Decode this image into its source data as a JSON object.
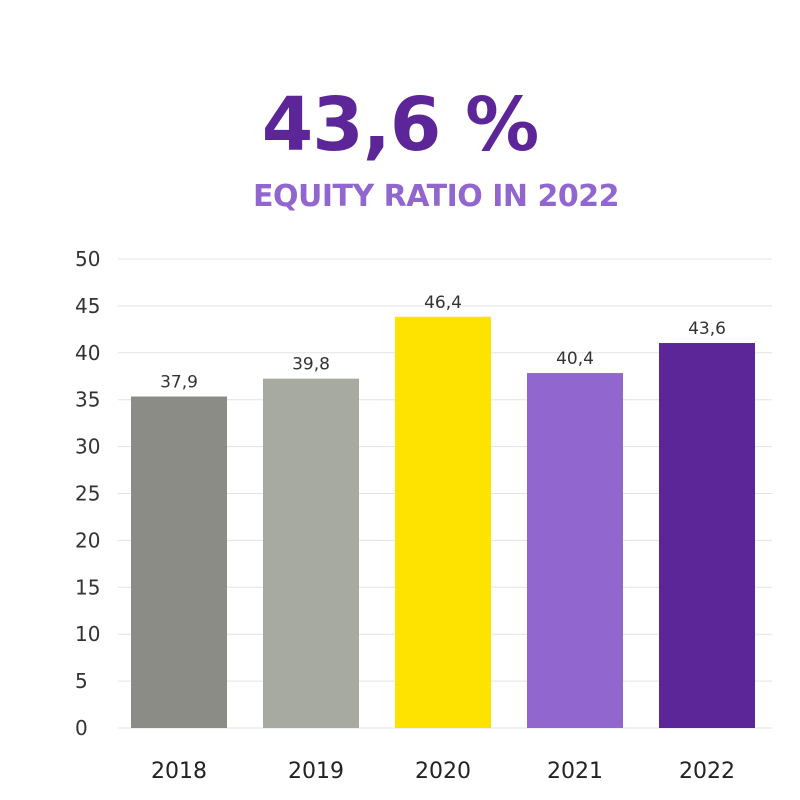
{
  "headline": {
    "value": "43,6 %",
    "caption": "EQUITY RATIO IN 2022"
  },
  "colors": {
    "headline": "#5c2699",
    "caption": "#9266cf",
    "grid": "#e3e3e3"
  },
  "chart_data": {
    "type": "bar",
    "categories": [
      "2018",
      "2019",
      "2020",
      "2021",
      "2022"
    ],
    "values": [
      37.9,
      39.8,
      46.4,
      40.4,
      43.6
    ],
    "value_labels": [
      "37,9",
      "39,8",
      "46,4",
      "40,4",
      "43,6"
    ],
    "bar_colors": [
      "#8b8c86",
      "#a7aaa1",
      "#ffe300",
      "#9266cf",
      "#5c2699"
    ],
    "ylim": [
      0,
      50
    ],
    "yticks": [
      0,
      5,
      10,
      15,
      20,
      25,
      30,
      35,
      40,
      45,
      50
    ],
    "grid": true,
    "title": "",
    "xlabel": "",
    "ylabel": ""
  }
}
